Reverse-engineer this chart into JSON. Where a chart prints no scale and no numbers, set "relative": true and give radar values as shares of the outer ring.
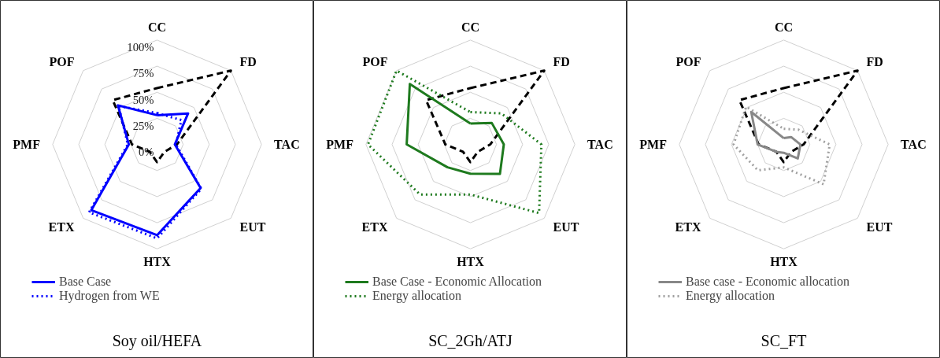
{
  "chart_data": [
    {
      "type": "radar",
      "categories": [
        "CC",
        "FD",
        "TAC",
        "EUT",
        "HTX",
        "ETX",
        "PMF",
        "POF"
      ],
      "ylim": [
        0,
        100
      ],
      "yticks": [
        {
          "value": 0,
          "label": "0%"
        },
        {
          "value": 25,
          "label": "25%"
        },
        {
          "value": 50,
          "label": "50%"
        },
        {
          "value": 75,
          "label": "75%"
        },
        {
          "value": 100,
          "label": "100%"
        }
      ],
      "grid": true,
      "legend": "bottom",
      "annotations": [
        "Soy oil/HEFA"
      ],
      "series": [
        {
          "color": "#000000",
          "line_style": "dashed",
          "values": [
            54,
            100,
            19,
            10,
            17,
            10,
            24,
            60
          ]
        },
        {
          "name": "Base Case",
          "color": "#0000ff",
          "line_style": "solid",
          "values": [
            28,
            42,
            17,
            59,
            87,
            89,
            27,
            53
          ]
        },
        {
          "name": "Hydrogen from WE",
          "color": "#0000ff",
          "line_style": "dotted",
          "values": [
            30,
            33,
            18,
            60,
            90,
            92,
            28,
            52
          ]
        }
      ]
    },
    {
      "type": "radar",
      "categories": [
        "CC",
        "FD",
        "TAC",
        "EUT",
        "HTX",
        "ETX",
        "PMF",
        "POF"
      ],
      "relative": true,
      "tick_labels": "x",
      "grid": true,
      "legend": "bottom",
      "annotations": [
        "SC_2Gh/ATJ"
      ],
      "series": [
        {
          "color": "#000000",
          "line_style": "dashed",
          "values": [
            0.54,
            1,
            0.19,
            0.1,
            0.17,
            0.1,
            0.24,
            0.6
          ]
        },
        {
          "name": "Base Case - Economic Allocation",
          "color": "#1e7a1e",
          "line_style": "solid",
          "values": [
            0.2,
            0.29,
            0.32,
            0.4,
            0.28,
            0.31,
            0.61,
            0.82
          ]
        },
        {
          "name": "Energy allocation",
          "color": "#1e7a1e",
          "line_style": "dotted",
          "values": [
            0.31,
            0.42,
            0.68,
            0.93,
            0.48,
            0.68,
            0.98,
            1
          ]
        }
      ]
    },
    {
      "type": "radar",
      "categories": [
        "CC",
        "FD",
        "TAC",
        "EUT",
        "HTX",
        "ETX",
        "PMF",
        "POF"
      ],
      "relative": true,
      "tick_labels": "x",
      "grid": true,
      "legend": "bottom",
      "annotations": [
        "SC_FT"
      ],
      "series": [
        {
          "color": "#000000",
          "line_style": "dashed",
          "values": [
            0.54,
            1,
            0.19,
            0.1,
            0.17,
            0.1,
            0.24,
            0.6
          ]
        },
        {
          "name": "Base case - Economic allocation",
          "color": "#888888",
          "line_style": "solid",
          "values": [
            0.06,
            0.1,
            0.16,
            0.19,
            0.08,
            0.1,
            0.25,
            0.44
          ]
        },
        {
          "name": "Energy allocation",
          "color": "#a0a0a0",
          "line_style": "dotted",
          "values": [
            0.15,
            0.2,
            0.44,
            0.54,
            0.22,
            0.35,
            0.48,
            0.51
          ]
        }
      ]
    }
  ]
}
